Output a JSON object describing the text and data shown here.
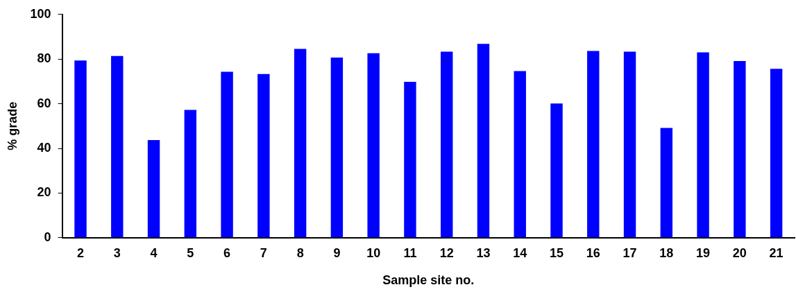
{
  "chart_data": {
    "type": "bar",
    "xlabel": "Sample site no.",
    "ylabel": "% grade",
    "categories": [
      "2",
      "3",
      "4",
      "5",
      "6",
      "7",
      "8",
      "9",
      "10",
      "11",
      "12",
      "13",
      "14",
      "15",
      "16",
      "17",
      "18",
      "19",
      "20",
      "21"
    ],
    "values": [
      79.4,
      81.4,
      43.7,
      57.2,
      74.3,
      73.3,
      84.6,
      80.7,
      82.6,
      69.8,
      83.3,
      86.8,
      74.6,
      60.1,
      83.6,
      83.3,
      49.2,
      83,
      79.1,
      75.6
    ],
    "color": "#0000ff",
    "ylim": [
      0,
      100
    ],
    "yticks": [
      0,
      20,
      40,
      60,
      80,
      100
    ],
    "grid": false,
    "legend": false
  }
}
